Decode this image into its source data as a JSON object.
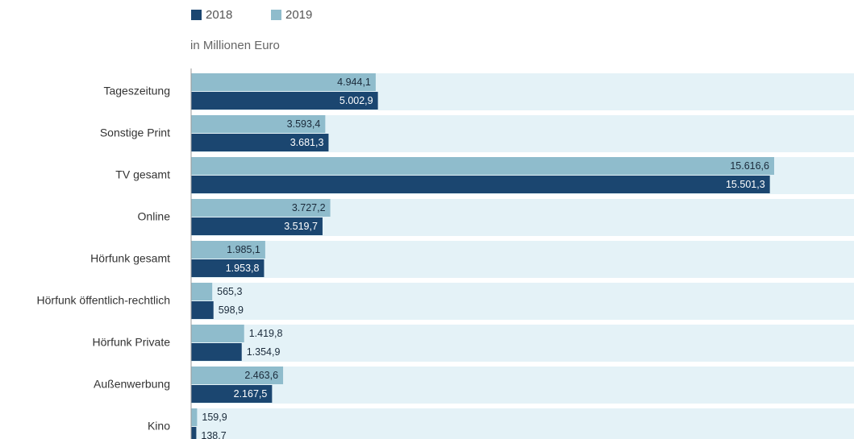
{
  "chart_data": {
    "type": "hbar",
    "subtitle": "in Millionen Euro",
    "categories": [
      "Tageszeitung",
      "Sonstige Print",
      "TV gesamt",
      "Online",
      "Hörfunk gesamt",
      "Hörfunk öffentlich-rechtlich",
      "Hörfunk Private",
      "Außenwerbung",
      "Kino"
    ],
    "series": [
      {
        "name": "2019",
        "color": "#8fbccc",
        "values": [
          4944.1,
          3593.4,
          15616.6,
          3727.2,
          1985.1,
          565.3,
          1419.8,
          2463.6,
          159.9
        ],
        "value_labels": [
          "4.944,1",
          "3.593,4",
          "15.616,6",
          "3.727,2",
          "1.985,1",
          "565,3",
          "1.419,8",
          "2.463,6",
          "159,9"
        ]
      },
      {
        "name": "2018",
        "color": "#1b4670",
        "values": [
          5002.9,
          3681.3,
          15501.3,
          3519.7,
          1953.8,
          598.9,
          1354.9,
          2167.5,
          138.7
        ],
        "value_labels": [
          "5.002,9",
          "3.681,3",
          "15.501,3",
          "3.519,7",
          "1.953,8",
          "598,9",
          "1.354,9",
          "2.167,5",
          "138,7"
        ]
      }
    ],
    "legend": [
      1,
      0
    ]
  }
}
